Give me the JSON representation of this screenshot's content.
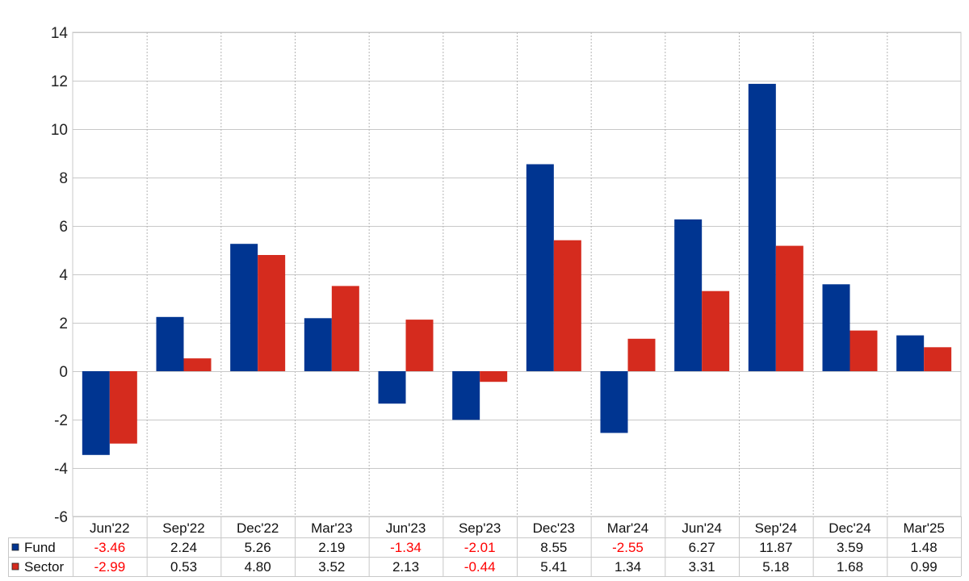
{
  "chart_data": {
    "type": "bar",
    "title": "",
    "xlabel": "",
    "ylabel": "",
    "ylim": [
      -6,
      14
    ],
    "yticks": [
      -6,
      -4,
      -2,
      0,
      2,
      4,
      6,
      8,
      10,
      12,
      14
    ],
    "ytick_labels": [
      "-6",
      "-4",
      "-2",
      "0",
      "2",
      "4",
      "6",
      "8",
      "10",
      "12",
      "14"
    ],
    "grid": true,
    "categories": [
      "Jun'22",
      "Sep'22",
      "Dec'22",
      "Mar'23",
      "Jun'23",
      "Sep'23",
      "Dec'23",
      "Mar'24",
      "Jun'24",
      "Sep'24",
      "Dec'24",
      "Mar'25"
    ],
    "series": [
      {
        "name": "Fund",
        "color": "#003591",
        "values": [
          -3.46,
          2.24,
          5.26,
          2.19,
          -1.34,
          -2.01,
          8.55,
          -2.55,
          6.27,
          11.87,
          3.59,
          1.48
        ],
        "labels": [
          "-3.46",
          "2.24",
          "5.26",
          "2.19",
          "-1.34",
          "-2.01",
          "8.55",
          "-2.55",
          "6.27",
          "11.87",
          "3.59",
          "1.48"
        ]
      },
      {
        "name": "Sector",
        "color": "#d52b1e",
        "values": [
          -2.99,
          0.53,
          4.8,
          3.52,
          2.13,
          -0.44,
          5.41,
          1.34,
          3.31,
          5.18,
          1.68,
          0.99
        ],
        "labels": [
          "-2.99",
          "0.53",
          "4.80",
          "3.52",
          "2.13",
          "-0.44",
          "5.41",
          "1.34",
          "3.31",
          "5.18",
          "1.68",
          "0.99"
        ]
      }
    ],
    "data_table": true,
    "negative_value_color": "#ff0000"
  }
}
